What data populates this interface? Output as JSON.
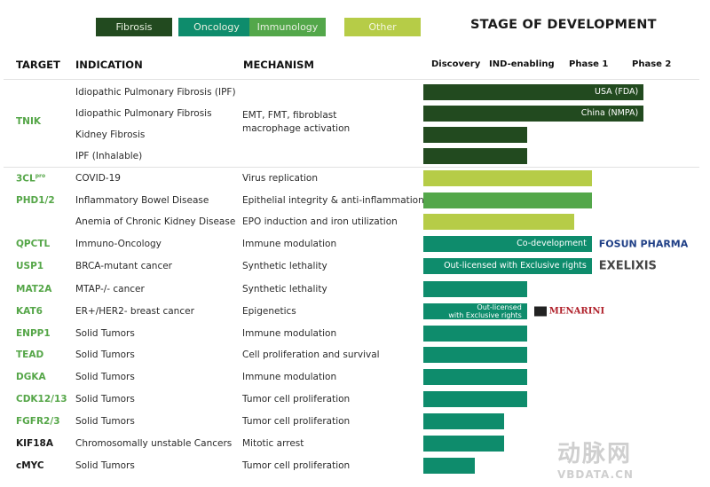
{
  "legend": [
    {
      "label": "Fibrosis",
      "color": "#224a1f"
    },
    {
      "label": "Oncology",
      "color": "#0e8c6c"
    },
    {
      "label": "Immunology",
      "color": "#53a74a"
    },
    {
      "label": "Other",
      "color": "#b6cc47"
    }
  ],
  "title": "STAGE OF DEVELOPMENT",
  "headers": {
    "target": "TARGET",
    "indication": "INDICATION",
    "mechanism": "MECHANISM"
  },
  "chart_data": {
    "type": "bar",
    "orientation": "horizontal",
    "stages": [
      "Discovery",
      "IND-enabling",
      "Phase 1",
      "Phase 2"
    ],
    "xlim": [
      0,
      4
    ],
    "rows": [
      {
        "target": "TNIK",
        "indication": "Idiopathic Pulmonary Fibrosis (IPF)",
        "mechanism": "EMT, FMT, fibroblast",
        "category": "Fibrosis",
        "value": 3.4,
        "label": "USA (FDA)"
      },
      {
        "target": "",
        "indication": "Idiopathic Pulmonary Fibrosis",
        "mechanism": "macrophage activation",
        "category": "Fibrosis",
        "value": 3.4,
        "label": "China (NMPA)"
      },
      {
        "target": "",
        "indication": "Kidney Fibrosis",
        "mechanism": "",
        "category": "Fibrosis",
        "value": 1.6,
        "label": ""
      },
      {
        "target": "",
        "indication": "IPF (Inhalable)",
        "mechanism": "",
        "category": "Fibrosis",
        "value": 1.6,
        "label": ""
      },
      {
        "target": "3CL",
        "target_sup": "pro",
        "indication": "COVID-19",
        "mechanism": "Virus replication",
        "category": "Other",
        "value": 2.6,
        "label": ""
      },
      {
        "target": "PHD1/2",
        "indication": "Inflammatory Bowel Disease",
        "mechanism": "Epithelial integrity & anti-inflammation",
        "category": "Immunology",
        "value": 2.6,
        "label": ""
      },
      {
        "target": "",
        "indication": "Anemia of Chronic Kidney Disease",
        "mechanism": "EPO induction and iron utilization",
        "category": "Other",
        "value": 2.33,
        "label": ""
      },
      {
        "target": "QPCTL",
        "indication": "Immuno-Oncology",
        "mechanism": "Immune modulation",
        "category": "Oncology",
        "value": 2.6,
        "label": "Co-development",
        "partner": "FOSUN PHARMA"
      },
      {
        "target": "USP1",
        "indication": "BRCA-mutant cancer",
        "mechanism": "Synthetic lethality",
        "category": "Oncology",
        "value": 2.6,
        "label": "Out-licensed with Exclusive rights",
        "partner": "EXELIXIS"
      },
      {
        "target": "MAT2A",
        "indication": "MTAP-/- cancer",
        "mechanism": "Synthetic lethality",
        "category": "Oncology",
        "value": 1.6,
        "label": ""
      },
      {
        "target": "KAT6",
        "indication": "ER+/HER2- breast cancer",
        "mechanism": "Epigenetics",
        "category": "Oncology",
        "value": 1.6,
        "label": "Out-licensed",
        "label2": "with Exclusive rights",
        "partner": "MENARINI"
      },
      {
        "target": "ENPP1",
        "indication": "Solid Tumors",
        "mechanism": "Immune modulation",
        "category": "Oncology",
        "value": 1.6,
        "label": ""
      },
      {
        "target": "TEAD",
        "indication": "Solid Tumors",
        "mechanism": "Cell proliferation and survival",
        "category": "Oncology",
        "value": 1.6,
        "label": ""
      },
      {
        "target": "DGKA",
        "indication": "Solid Tumors",
        "mechanism": "Immune modulation",
        "category": "Oncology",
        "value": 1.6,
        "label": ""
      },
      {
        "target": "CDK12/13",
        "indication": "Solid Tumors",
        "mechanism": "Tumor cell proliferation",
        "category": "Oncology",
        "value": 1.6,
        "label": ""
      },
      {
        "target": "FGFR2/3",
        "indication": "Solid Tumors",
        "mechanism": "Tumor cell proliferation",
        "category": "Oncology",
        "value": 1.25,
        "label": ""
      },
      {
        "target": "KIF18A",
        "target_dark": true,
        "indication": "Chromosomally unstable Cancers",
        "mechanism": "Mitotic arrest",
        "category": "Oncology",
        "value": 1.25,
        "label": ""
      },
      {
        "target": "cMYC",
        "target_dark": true,
        "indication": "Solid Tumors",
        "mechanism": "Tumor cell proliferation",
        "category": "Oncology",
        "value": 0.8,
        "label": ""
      }
    ]
  },
  "watermark": {
    "cn": "动脉网",
    "en": "VBDATA.CN"
  }
}
